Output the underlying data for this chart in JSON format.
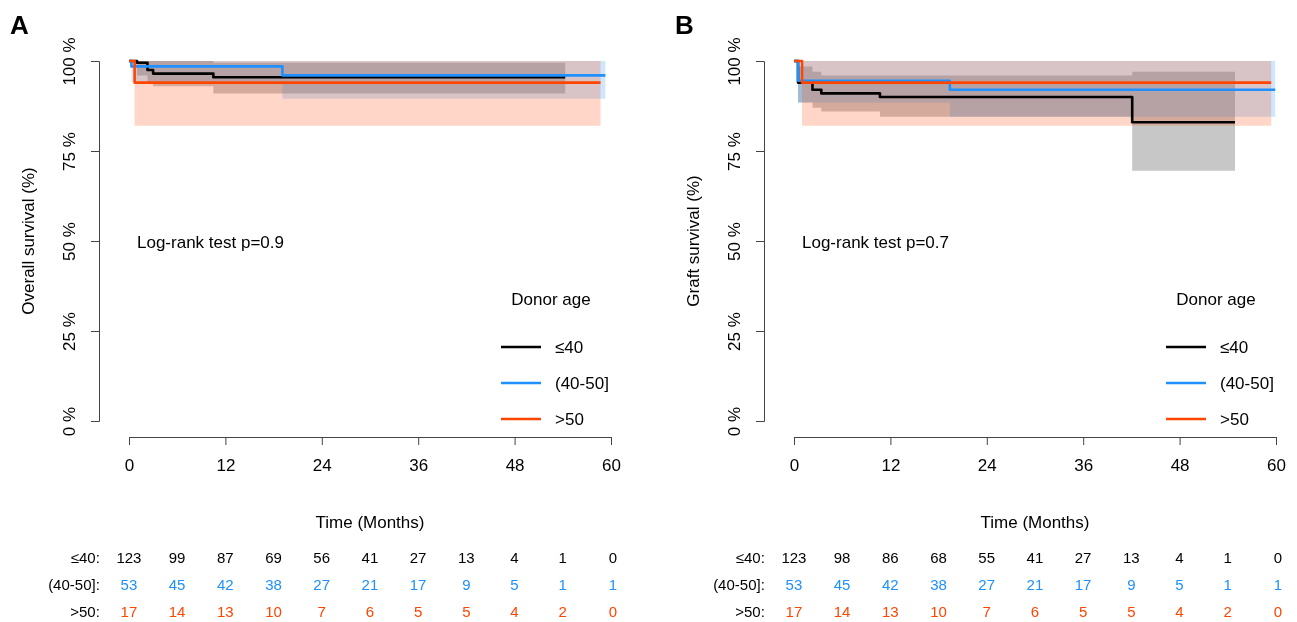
{
  "chart_data": [
    {
      "type": "step",
      "title": "A",
      "xlabel": "Time (Months)",
      "ylabel": "Overall survival (%)",
      "legend_title": "Donor age",
      "legend": "right",
      "grid": false,
      "line_style": "solid",
      "xlim": [
        0,
        60
      ],
      "xticks": [
        0,
        12,
        24,
        36,
        48,
        60
      ],
      "ylim": [
        0,
        100
      ],
      "yticks": [
        {
          "value": 0,
          "label": "0 %"
        },
        {
          "value": 25,
          "label": "25 %"
        },
        {
          "value": 50,
          "label": "50 %"
        },
        {
          "value": 75,
          "label": "75 %"
        },
        {
          "value": 100,
          "label": "100 %"
        }
      ],
      "series": [
        {
          "name": "≤40",
          "color": "#000000",
          "x": [
            0,
            1,
            2.3,
            3,
            10.5,
            54.3
          ],
          "values": [
            100,
            99.5,
            97.5,
            96.5,
            95.5,
            95.5
          ],
          "lower": [
            100,
            96,
            94,
            93,
            91,
            91
          ],
          "upper": [
            100,
            100,
            100,
            100,
            99.5,
            99.5
          ]
        },
        {
          "name": "(40-50]",
          "color": "#1e90ff",
          "x": [
            0,
            0.3,
            19.1,
            59.3
          ],
          "values": [
            100,
            98.5,
            96,
            96
          ],
          "lower": [
            100,
            94,
            89.5,
            89.5
          ],
          "upper": [
            100,
            100,
            100,
            100
          ]
        },
        {
          "name": ">50",
          "color": "#ff4500",
          "x": [
            0,
            0.7,
            58.7
          ],
          "values": [
            100,
            94,
            94
          ],
          "lower": [
            100,
            82,
            82
          ],
          "upper": [
            100,
            100,
            100
          ]
        }
      ],
      "annotations": [
        "Log-rank test p=0.9",
        "≤40: 123 99 87 69 56 41 27 13 4 1 0",
        "(40-50]: 53 45 42 38 27 21 17 9 5 1 1",
        ">50: 17 14 13 10 7 6 5 5 4 2 0"
      ]
    },
    {
      "type": "step",
      "title": "B",
      "xlabel": "Time (Months)",
      "ylabel": "Graft survival (%)",
      "legend_title": "Donor age",
      "legend": "right",
      "grid": false,
      "line_style": "solid",
      "xlim": [
        0,
        60
      ],
      "xticks": [
        0,
        12,
        24,
        36,
        48,
        60
      ],
      "ylim": [
        0,
        100
      ],
      "yticks": [
        {
          "value": 0,
          "label": "0 %"
        },
        {
          "value": 25,
          "label": "25 %"
        },
        {
          "value": 50,
          "label": "50 %"
        },
        {
          "value": 75,
          "label": "75 %"
        },
        {
          "value": 100,
          "label": "100 %"
        }
      ],
      "series": [
        {
          "name": "≤40",
          "color": "#000000",
          "x": [
            0,
            0.5,
            2.3,
            3.4,
            10.7,
            42.1,
            54.9
          ],
          "values": [
            100,
            94,
            92,
            91,
            90,
            83,
            83
          ],
          "lower": [
            100,
            88.5,
            87,
            86,
            84.5,
            69.5,
            69.5
          ],
          "upper": [
            100,
            98.5,
            97,
            96,
            96,
            97,
            97
          ]
        },
        {
          "name": "(40-50]",
          "color": "#1e90ff",
          "x": [
            0,
            0.5,
            19.4,
            59.9
          ],
          "values": [
            100,
            94.5,
            92,
            92
          ],
          "lower": [
            100,
            88.5,
            84.5,
            84.5
          ],
          "upper": [
            100,
            100,
            100,
            100
          ]
        },
        {
          "name": ">50",
          "color": "#ff4500",
          "x": [
            0,
            1,
            59.4
          ],
          "values": [
            100,
            94,
            94
          ],
          "lower": [
            100,
            82,
            82
          ],
          "upper": [
            100,
            100,
            100
          ]
        }
      ],
      "annotations": [
        "Log-rank test p=0.7",
        "≤40: 123 98 86 68 55 41 27 13 4 1 0",
        "(40-50]: 53 45 42 38 27 21 17 9 5 1 1",
        ">50: 17 14 13 10 7 6 5 5 4 2 0"
      ]
    }
  ]
}
